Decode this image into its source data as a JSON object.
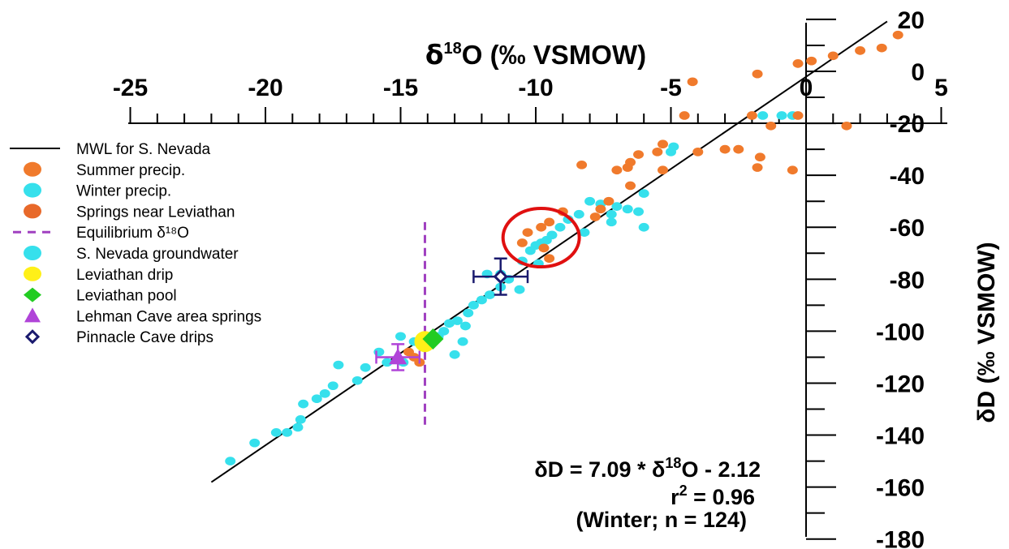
{
  "chart_data": {
    "type": "scatter",
    "title": "",
    "xlabel": "δ¹⁸O (‰ VSMOW)",
    "xlabel_parts": {
      "delta": "δ",
      "sup": "18",
      "rest": "O (‰ VSMOW)"
    },
    "ylabel": "δD (‰ VSMOW)",
    "xlim": [
      -25,
      5
    ],
    "ylim": [
      -180,
      20
    ],
    "x_ticks": [
      "-25",
      "-20",
      "-15",
      "-10",
      "-5",
      "0",
      "5"
    ],
    "y_ticks": [
      "20",
      "0",
      "-20",
      "-40",
      "-60",
      "-80",
      "-100",
      "-120",
      "-140",
      "-160",
      "-180"
    ],
    "grid": false,
    "legend_position": "left",
    "series": [
      {
        "name": "MWL for S. Nevada",
        "kind": "line",
        "color": "#000000",
        "x": [
          -22,
          3
        ],
        "y": [
          -158.1,
          19.2
        ]
      },
      {
        "name": "Summer precip.",
        "kind": "points",
        "color": "#F07A2C",
        "points": [
          [
            3.4,
            14
          ],
          [
            2.8,
            9
          ],
          [
            2.0,
            8
          ],
          [
            1.0,
            6
          ],
          [
            0.2,
            4
          ],
          [
            -0.3,
            3
          ],
          [
            -1.8,
            -1
          ],
          [
            -4.2,
            -4
          ],
          [
            -4.5,
            -17
          ],
          [
            -2.0,
            -17
          ],
          [
            -1.3,
            -21
          ],
          [
            -0.3,
            -17
          ],
          [
            1.5,
            -21
          ],
          [
            -3.0,
            -30
          ],
          [
            -2.5,
            -30
          ],
          [
            -4.0,
            -31
          ],
          [
            -1.7,
            -33
          ],
          [
            -1.8,
            -37
          ],
          [
            -0.5,
            -38
          ],
          [
            -5.3,
            -28
          ],
          [
            -5.5,
            -31
          ],
          [
            -6.2,
            -32
          ],
          [
            -5.3,
            -38
          ],
          [
            -6.5,
            -35
          ],
          [
            -6.6,
            -37
          ],
          [
            -7.0,
            -38
          ],
          [
            -6.5,
            -44
          ],
          [
            -8.3,
            -36
          ],
          [
            -7.3,
            -50
          ],
          [
            -7.6,
            -53
          ],
          [
            -7.8,
            -56
          ],
          [
            -9.0,
            -54
          ],
          [
            -9.5,
            -58
          ],
          [
            -9.8,
            -60
          ],
          [
            -10.3,
            -62
          ],
          [
            -10.5,
            -66
          ],
          [
            -9.7,
            -68
          ],
          [
            -9.5,
            -72
          ],
          [
            -14.3,
            -112
          ],
          [
            -14.5,
            -110
          ],
          [
            -14.7,
            -108
          ]
        ]
      },
      {
        "name": "Winter precip.",
        "kind": "points",
        "color": "#36E0EC",
        "points": [
          [
            -0.9,
            -17
          ],
          [
            -1.6,
            -17
          ],
          [
            -0.5,
            -17
          ],
          [
            -4.9,
            -29
          ],
          [
            -5.0,
            -31
          ],
          [
            -6.0,
            -47
          ],
          [
            -6.0,
            -60
          ],
          [
            -7.0,
            -52
          ],
          [
            -7.2,
            -55
          ],
          [
            -7.6,
            -51
          ],
          [
            -8.0,
            -50
          ],
          [
            -8.4,
            -55
          ],
          [
            -8.8,
            -57
          ],
          [
            -9.1,
            -60
          ],
          [
            -9.4,
            -63
          ],
          [
            -9.6,
            -65
          ],
          [
            -9.8,
            -66
          ],
          [
            -10.0,
            -67
          ],
          [
            -10.2,
            -69
          ],
          [
            -9.9,
            -74
          ],
          [
            -10.5,
            -73
          ],
          [
            -11.0,
            -80
          ],
          [
            -11.3,
            -83
          ],
          [
            -11.7,
            -86
          ],
          [
            -10.6,
            -84
          ],
          [
            -12.0,
            -88
          ],
          [
            -12.3,
            -90
          ],
          [
            -12.5,
            -93
          ],
          [
            -12.9,
            -96
          ],
          [
            -13.2,
            -97
          ],
          [
            -12.6,
            -98
          ],
          [
            -13.4,
            -100
          ],
          [
            -13.6,
            -102
          ],
          [
            -12.7,
            -104
          ],
          [
            -13.8,
            -104
          ],
          [
            -14.0,
            -106
          ],
          [
            -14.1,
            -105
          ],
          [
            -15.8,
            -108
          ],
          [
            -15.5,
            -112
          ],
          [
            -16.3,
            -114
          ],
          [
            -16.6,
            -119
          ],
          [
            -17.3,
            -113
          ],
          [
            -17.5,
            -121
          ],
          [
            -17.8,
            -124
          ],
          [
            -18.1,
            -126
          ],
          [
            -18.6,
            -128
          ],
          [
            -18.7,
            -134
          ],
          [
            -18.8,
            -137
          ],
          [
            -19.2,
            -139
          ],
          [
            -19.6,
            -139
          ],
          [
            -20.4,
            -143
          ],
          [
            -21.3,
            -150
          ],
          [
            -7.2,
            -58
          ],
          [
            -8.2,
            -62
          ],
          [
            -6.2,
            -54
          ],
          [
            -6.6,
            -53
          ],
          [
            -11.8,
            -78
          ],
          [
            -11.3,
            -78
          ],
          [
            -14.9,
            -112
          ],
          [
            -13.0,
            -109
          ],
          [
            -15.0,
            -102
          ],
          [
            -14.5,
            -104
          ]
        ]
      },
      {
        "name": "Springs near Leviathan",
        "kind": "points",
        "color": "#E8692A",
        "points": []
      },
      {
        "name": "Equilibrium δ¹⁸O",
        "kind": "vline",
        "color": "#A040C0",
        "x": -14.1,
        "y": [
          -136,
          -58
        ]
      },
      {
        "name": "S. Nevada groundwater",
        "kind": "points",
        "color": "#36E0EC",
        "points": []
      },
      {
        "name": "Leviathan drip",
        "kind": "points",
        "color": "#FFF018",
        "points": [
          [
            -14.1,
            -104
          ]
        ]
      },
      {
        "name": "Leviathan pool",
        "kind": "points",
        "color": "#22CC22",
        "points": [
          [
            -13.8,
            -103
          ]
        ]
      },
      {
        "name": "Lehman Cave area springs",
        "kind": "points",
        "color": "#B044D8",
        "points": [
          [
            -15.1,
            -110
          ]
        ],
        "x_err": 0.8,
        "y_err": 5
      },
      {
        "name": "Pinnacle Cave drips",
        "kind": "points",
        "color": "#1A1A6E",
        "points": [
          [
            -11.3,
            -79
          ]
        ],
        "x_err": 1.0,
        "y_err": 7
      }
    ],
    "equation": {
      "line1": {
        "a": "δD = 7.09 * δ",
        "sup": "18",
        "b": "O - 2.12"
      },
      "line2": {
        "a": "r",
        "sup": "2",
        "b": " = 0.96"
      },
      "line3": "(Winter; n = 124)"
    },
    "annotation": {
      "kind": "circle",
      "color": "#E01010",
      "center": [
        -9.8,
        -64
      ]
    }
  }
}
